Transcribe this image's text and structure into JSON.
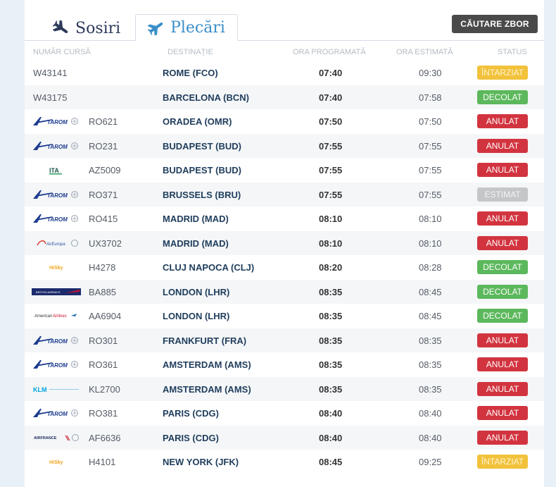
{
  "tabs": {
    "arrivals_label": "Sosiri",
    "departures_label": "Plecări"
  },
  "search_button_label": "CĂUTARE ZBOR",
  "columns": {
    "flight": "NUMĂR CURSĂ",
    "destination": "DESTINAȚIE",
    "scheduled": "ORA PROGRAMATĂ",
    "estimated": "ORA ESTIMATĂ",
    "status": "STATUS"
  },
  "flights": [
    {
      "logo": "",
      "flight": "W43141",
      "destination": "ROME (FCO)",
      "scheduled": "07:40",
      "estimated": "09:30",
      "status": "ÎNTARZIAT",
      "status_color": "#f2c23c"
    },
    {
      "logo": "",
      "flight": "W43175",
      "destination": "BARCELONA (BCN)",
      "scheduled": "07:40",
      "estimated": "07:58",
      "status": "DECOLAT",
      "status_color": "#5cb85c"
    },
    {
      "logo": "tarom-logo",
      "flight": "RO621",
      "destination": "ORADEA (OMR)",
      "scheduled": "07:50",
      "estimated": "07:50",
      "status": "ANULAT",
      "status_color": "#d2343f"
    },
    {
      "logo": "tarom-logo",
      "flight": "RO231",
      "destination": "BUDAPEST (BUD)",
      "scheduled": "07:55",
      "estimated": "07:55",
      "status": "ANULAT",
      "status_color": "#d2343f"
    },
    {
      "logo": "ita-logo",
      "flight": "AZ5009",
      "destination": "BUDAPEST (BUD)",
      "scheduled": "07:55",
      "estimated": "07:55",
      "status": "ANULAT",
      "status_color": "#d2343f"
    },
    {
      "logo": "tarom-logo",
      "flight": "RO371",
      "destination": "BRUSSELS (BRU)",
      "scheduled": "07:55",
      "estimated": "07:55",
      "status": "ESTIMAT",
      "status_color": "#c4c6c8"
    },
    {
      "logo": "tarom-logo",
      "flight": "RO415",
      "destination": "MADRID (MAD)",
      "scheduled": "08:10",
      "estimated": "08:10",
      "status": "ANULAT",
      "status_color": "#d2343f"
    },
    {
      "logo": "aireuropa-logo",
      "flight": "UX3702",
      "destination": "MADRID (MAD)",
      "scheduled": "08:10",
      "estimated": "08:10",
      "status": "ANULAT",
      "status_color": "#d2343f"
    },
    {
      "logo": "hisky-logo",
      "flight": "H4278",
      "destination": "CLUJ NAPOCA (CLJ)",
      "scheduled": "08:20",
      "estimated": "08:28",
      "status": "DECOLAT",
      "status_color": "#5cb85c"
    },
    {
      "logo": "britishairways-logo",
      "flight": "BA885",
      "destination": "LONDON (LHR)",
      "scheduled": "08:35",
      "estimated": "08:45",
      "status": "DECOLAT",
      "status_color": "#5cb85c"
    },
    {
      "logo": "americanairlines-logo",
      "flight": "AA6904",
      "destination": "LONDON (LHR)",
      "scheduled": "08:35",
      "estimated": "08:45",
      "status": "DECOLAT",
      "status_color": "#5cb85c"
    },
    {
      "logo": "tarom-logo",
      "flight": "RO301",
      "destination": "FRANKFURT (FRA)",
      "scheduled": "08:35",
      "estimated": "08:35",
      "status": "ANULAT",
      "status_color": "#d2343f"
    },
    {
      "logo": "tarom-logo",
      "flight": "RO361",
      "destination": "AMSTERDAM (AMS)",
      "scheduled": "08:35",
      "estimated": "08:35",
      "status": "ANULAT",
      "status_color": "#d2343f"
    },
    {
      "logo": "klm-logo",
      "flight": "KL2700",
      "destination": "AMSTERDAM (AMS)",
      "scheduled": "08:35",
      "estimated": "08:35",
      "status": "ANULAT",
      "status_color": "#d2343f"
    },
    {
      "logo": "tarom-logo",
      "flight": "RO381",
      "destination": "PARIS (CDG)",
      "scheduled": "08:40",
      "estimated": "08:40",
      "status": "ANULAT",
      "status_color": "#d2343f"
    },
    {
      "logo": "airfrance-logo",
      "flight": "AF6636",
      "destination": "PARIS (CDG)",
      "scheduled": "08:40",
      "estimated": "08:40",
      "status": "ANULAT",
      "status_color": "#d2343f"
    },
    {
      "logo": "hisky-logo",
      "flight": "H4101",
      "destination": "NEW YORK (JFK)",
      "scheduled": "08:45",
      "estimated": "09:25",
      "status": "ÎNTARZIAT",
      "status_color": "#f2c23c"
    }
  ]
}
